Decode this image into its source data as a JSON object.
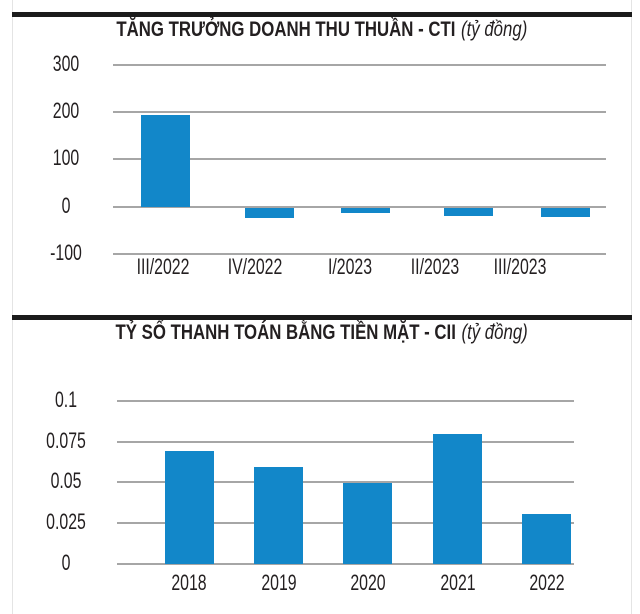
{
  "colors": {
    "bar_blue": "#1287c9",
    "grid_gray": "#a6a6a6",
    "rule_black": "#1b1b1b",
    "text": "#231f20"
  },
  "chart_data": [
    {
      "type": "bar",
      "title": "TĂNG TRƯỞNG DOANH THU THUẦN - CTI",
      "title_unit": "(tỷ đồng)",
      "categories": [
        "III/2022",
        "IV/2022",
        "I/2023",
        "II/2023",
        "III/2023"
      ],
      "values": [
        192,
        -21,
        -10,
        -17,
        -20
      ],
      "yticks": [
        "300",
        "200",
        "100",
        "0",
        "-100"
      ],
      "ytick_values": [
        300,
        200,
        100,
        0,
        -100
      ],
      "ylim": [
        -100,
        300
      ],
      "xlabel": "",
      "ylabel": "",
      "grid": true,
      "legend": false,
      "bar_color": "#1287c9"
    },
    {
      "type": "bar",
      "title": "TỶ SỐ THANH TOÁN BẰNG TIỀN MẶT - CII",
      "title_unit": "(tỷ đồng)",
      "categories": [
        "2018",
        "2019",
        "2020",
        "2021",
        "2022"
      ],
      "values": [
        0.069,
        0.059,
        0.049,
        0.079,
        0.03
      ],
      "yticks": [
        "0.1",
        "0.075",
        "0.05",
        "0.025",
        "0"
      ],
      "ytick_values": [
        0.1,
        0.075,
        0.05,
        0.025,
        0
      ],
      "ylim": [
        0,
        0.1
      ],
      "xlabel": "",
      "ylabel": "",
      "grid": true,
      "legend": false,
      "bar_color": "#1287c9"
    }
  ]
}
